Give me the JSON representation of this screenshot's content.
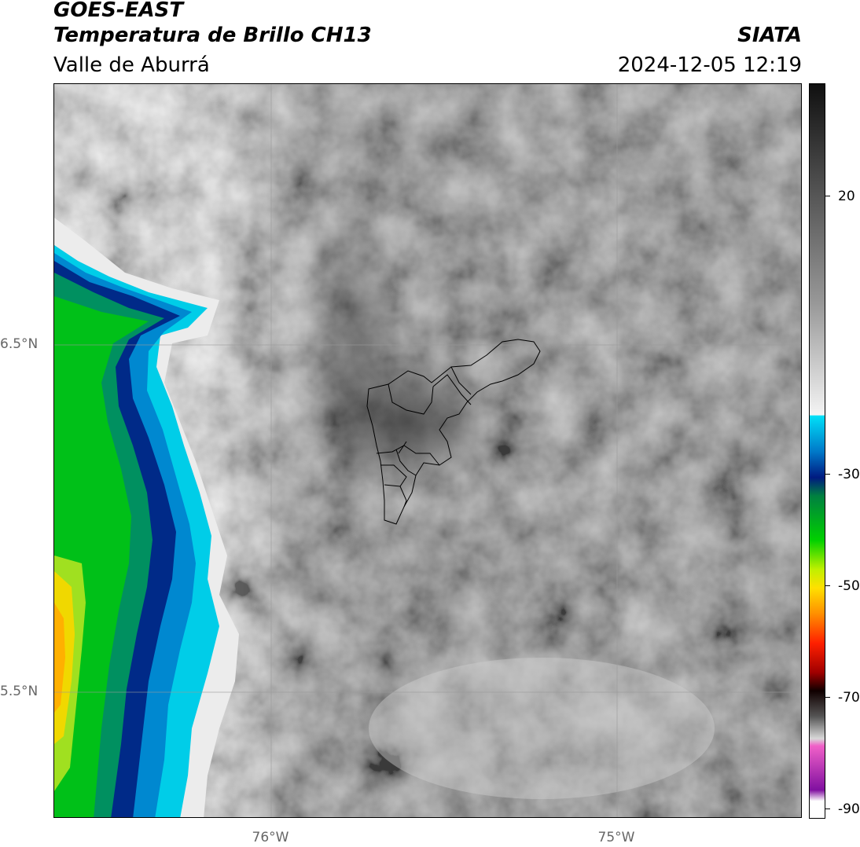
{
  "header": {
    "satellite": "GOES-EAST",
    "product": "Temperatura de Brillo CH13",
    "region": "Valle de Aburrá",
    "brand": "SIATA",
    "timestamp": "2024-12-05 12:19"
  },
  "map": {
    "lat_labels": [
      "6.5°N",
      "5.5°N"
    ],
    "lon_labels": [
      "76°W",
      "75°W"
    ]
  },
  "colorbar": {
    "tick_labels": [
      "20",
      "-30",
      "-50",
      "-70",
      "-90"
    ],
    "colors": {
      "cold_top": "#e8e8e8",
      "cyan": "#00d8f0",
      "blue": "#003090",
      "green": "#00c020",
      "yellow": "#f0e000",
      "orange": "#ff8000",
      "red": "#e00000",
      "dark": "#200000",
      "pink": "#e060c0",
      "purple": "#8010a0"
    }
  }
}
